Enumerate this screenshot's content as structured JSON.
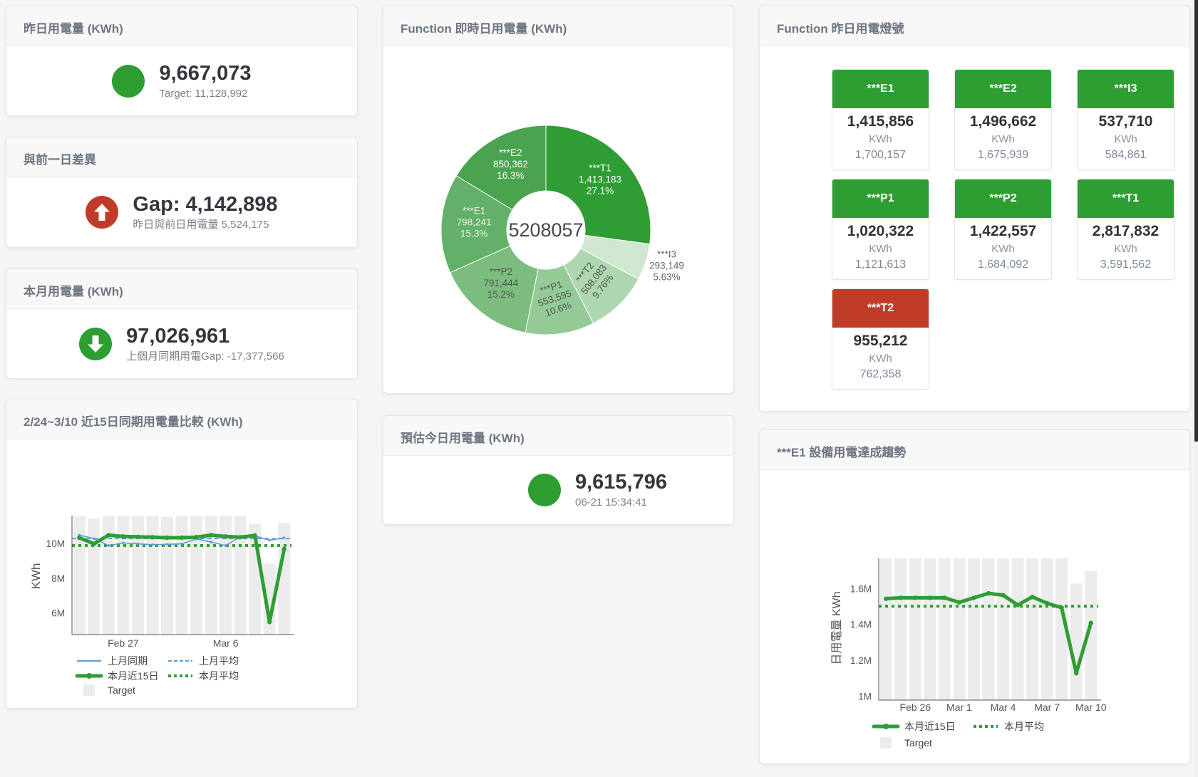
{
  "colors": {
    "green": "#2e9e33",
    "red": "#bf3c28",
    "blue": "#5b9bd5",
    "target_bar": "#ececec",
    "axis": "#555555",
    "legend_text": "#444444"
  },
  "cards": {
    "yesterday": {
      "title": "昨日用電量 (KWh)",
      "value": "9,667,073",
      "subtitle": "Target: 11,128,992",
      "indicator": "circle",
      "indicator_color": "green"
    },
    "day_gap": {
      "title": "與前一日差異",
      "value": "Gap: 4,142,898",
      "subtitle": "昨日與前日用電量 5,524,175",
      "indicator": "arrow-up",
      "indicator_color": "red"
    },
    "month": {
      "title": "本月用電量 (KWh)",
      "value": "97,026,961",
      "subtitle": "上個月同期用電Gap: -17,377,566",
      "indicator": "arrow-down",
      "indicator_color": "green"
    },
    "estimate": {
      "title": "預估今日用電量 (KWh)",
      "value": "9,615,796",
      "subtitle": "06-21 15:34:41",
      "indicator": "circle",
      "indicator_color": "green"
    }
  },
  "donut_card": {
    "title": "Function 即時日用電量 (KWh)"
  },
  "compare_card": {
    "title": "2/24~3/10 近15日同期用電量比較 (KWh)"
  },
  "trend_card": {
    "title": "***E1 設備用電達成趨勢"
  },
  "lights_card": {
    "title": "Function 昨日用電燈號",
    "tiles": [
      {
        "name": "***E1",
        "value": "1,415,856",
        "unit": "KWh",
        "target": "1,700,157",
        "status": "green"
      },
      {
        "name": "***E2",
        "value": "1,496,662",
        "unit": "KWh",
        "target": "1,675,939",
        "status": "green"
      },
      {
        "name": "***I3",
        "value": "537,710",
        "unit": "KWh",
        "target": "584,861",
        "status": "green"
      },
      {
        "name": "***P1",
        "value": "1,020,322",
        "unit": "KWh",
        "target": "1,121,613",
        "status": "green"
      },
      {
        "name": "***P2",
        "value": "1,422,557",
        "unit": "KWh",
        "target": "1,684,092",
        "status": "green"
      },
      {
        "name": "***T1",
        "value": "2,817,832",
        "unit": "KWh",
        "target": "3,591,562",
        "status": "green"
      },
      {
        "name": "***T2",
        "value": "955,212",
        "unit": "KWh",
        "target": "762,358",
        "status": "red"
      }
    ]
  },
  "chart_data": [
    {
      "id": "function-donut",
      "type": "pie",
      "title": "Function 即時日用電量 (KWh)",
      "center_total": "5208057",
      "slices": [
        {
          "name": "***T1",
          "value": 1413183,
          "value_label": "1,413,183",
          "pct_label": "27.1%",
          "color": "#2f9d33",
          "label_color": "#ffffff",
          "rotate": 0,
          "outside": false
        },
        {
          "name": "***I3",
          "value": 293149,
          "value_label": "293,149",
          "pct_label": "5.63%",
          "color": "#cfe8cf",
          "label_color": "#666666",
          "rotate": 0,
          "outside": true
        },
        {
          "name": "***T2",
          "value": 508083,
          "value_label": "508,083",
          "pct_label": "9.76%",
          "color": "#aed7af",
          "label_color": "#555555",
          "rotate": -52,
          "outside": false
        },
        {
          "name": "***P1",
          "value": 553595,
          "value_label": "553,595",
          "pct_label": "10.6%",
          "color": "#94ca96",
          "label_color": "#555555",
          "rotate": -18,
          "outside": false
        },
        {
          "name": "***P2",
          "value": 791444,
          "value_label": "791,444",
          "pct_label": "15.2%",
          "color": "#7bbd7f",
          "label_color": "#555555",
          "rotate": 0,
          "outside": false
        },
        {
          "name": "***E1",
          "value": 798241,
          "value_label": "798,241",
          "pct_label": "15.3%",
          "color": "#63b068",
          "label_color": "#ecf2ec",
          "rotate": 0,
          "outside": false
        },
        {
          "name": "***E2",
          "value": 850362,
          "value_label": "850,362",
          "pct_label": "16.3%",
          "color": "#4aa44f",
          "label_color": "#ffffff",
          "rotate": 0,
          "outside": false
        }
      ]
    },
    {
      "id": "compare15",
      "type": "line",
      "title": "2/24~3/10 近15日同期用電量比較 (KWh)",
      "ylabel": "KWh",
      "ylim": [
        4.78,
        11.62
      ],
      "yticks": [
        {
          "v": 6,
          "label": "6M"
        },
        {
          "v": 8,
          "label": "8M"
        },
        {
          "v": 10,
          "label": "10M"
        }
      ],
      "xticks": [
        {
          "i": 3,
          "label": "Feb 27"
        },
        {
          "i": 10,
          "label": "Mar 6"
        }
      ],
      "target_bars": {
        "name": "Target",
        "color": "#ececec",
        "values": [
          11.6,
          11.45,
          11.6,
          11.6,
          11.6,
          11.6,
          11.55,
          11.6,
          11.6,
          11.6,
          11.6,
          11.6,
          11.15,
          8.85,
          11.2
        ]
      },
      "series": [
        {
          "name": "上月同期",
          "style": "line",
          "color": "#5b9bd5",
          "values": [
            10.5,
            10.3,
            9.9,
            10.05,
            10.0,
            9.95,
            9.97,
            10.0,
            10.28,
            10.1,
            9.9,
            10.4,
            10.45,
            10.2,
            10.35
          ]
        },
        {
          "name": "本月近15日",
          "style": "thick",
          "color": "#2e9e33",
          "values": [
            10.35,
            10.0,
            10.5,
            10.42,
            10.4,
            10.38,
            10.35,
            10.35,
            10.38,
            10.5,
            10.42,
            10.38,
            10.48,
            5.5,
            9.7
          ]
        }
      ],
      "avg_lines": [
        {
          "name": "上月平均",
          "style": "dash",
          "color": "#5b9bd5",
          "value": 10.3
        },
        {
          "name": "本月平均",
          "style": "dots",
          "color": "#2e9e33",
          "value": 9.9
        }
      ],
      "legend_rows": [
        [
          {
            "type": "line",
            "color": "#5b9bd5",
            "label": "上月同期"
          },
          {
            "type": "dash",
            "color": "#5b9bd5",
            "label": "上月平均"
          }
        ],
        [
          {
            "type": "thick",
            "color": "#2e9e33",
            "label": "本月近15日"
          },
          {
            "type": "dots",
            "color": "#2e9e33",
            "label": "本月平均"
          }
        ],
        [
          {
            "type": "box",
            "color": "#ececec",
            "label": "Target"
          }
        ]
      ]
    },
    {
      "id": "e1trend",
      "type": "line",
      "title": "***E1 設備用電達成趨勢",
      "ylabel": "日用電量 KWh",
      "ylim": [
        0.98,
        1.77
      ],
      "yticks": [
        {
          "v": 1,
          "label": "1M"
        },
        {
          "v": 1.2,
          "label": "1.2M"
        },
        {
          "v": 1.4,
          "label": "1.4M"
        },
        {
          "v": 1.6,
          "label": "1.6M"
        }
      ],
      "xticks": [
        {
          "i": 2,
          "label": "Feb 26"
        },
        {
          "i": 5,
          "label": "Mar 1"
        },
        {
          "i": 8,
          "label": "Mar 4"
        },
        {
          "i": 11,
          "label": "Mar 7"
        },
        {
          "i": 14,
          "label": "Mar 10"
        }
      ],
      "target_bars": {
        "name": "Target",
        "color": "#ececec",
        "values": [
          1.77,
          1.77,
          1.77,
          1.77,
          1.77,
          1.77,
          1.77,
          1.77,
          1.77,
          1.77,
          1.77,
          1.77,
          1.77,
          1.63,
          1.7
        ]
      },
      "series": [
        {
          "name": "本月近15日",
          "style": "thick",
          "color": "#2e9e33",
          "values": [
            1.545,
            1.55,
            1.55,
            1.55,
            1.55,
            1.525,
            1.55,
            1.575,
            1.565,
            1.51,
            1.555,
            1.52,
            1.495,
            1.13,
            1.41
          ]
        }
      ],
      "avg_lines": [
        {
          "name": "本月平均",
          "style": "dots",
          "color": "#2e9e33",
          "value": 1.503
        }
      ],
      "legend_rows": [
        [
          {
            "type": "thick",
            "color": "#2e9e33",
            "label": "本月近15日"
          },
          {
            "type": "dots",
            "color": "#2e9e33",
            "label": "本月平均"
          }
        ],
        [
          {
            "type": "box",
            "color": "#ececec",
            "label": "Target"
          }
        ]
      ]
    }
  ]
}
